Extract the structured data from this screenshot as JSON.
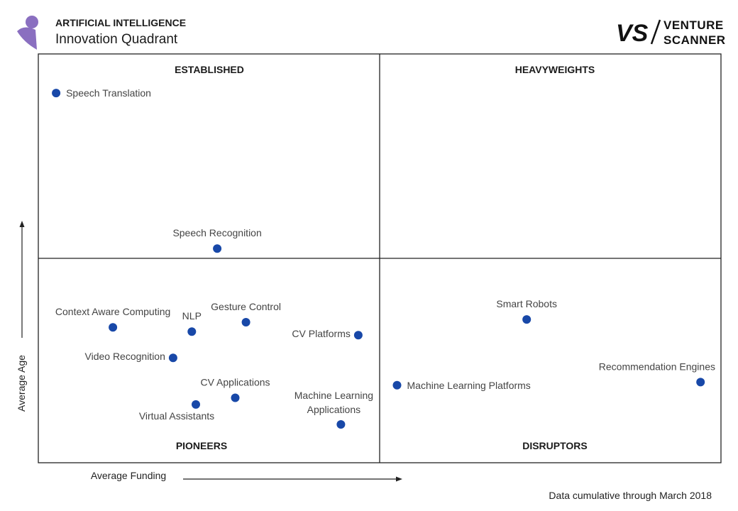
{
  "header": {
    "title": "ARTIFICIAL INTELLIGENCE",
    "subtitle": "Innovation Quadrant"
  },
  "brand": {
    "monogram": "VS",
    "line1": "VENTURE",
    "line2": "SCANNER",
    "logo_icon": "person-silhouette-icon",
    "logo_color": "#8a6fc0"
  },
  "footnote": "Data cumulative through March 2018",
  "colors": {
    "point": "#1848a8",
    "frame": "#222222"
  },
  "chart_data": {
    "type": "scatter",
    "xlabel": "Average Funding",
    "ylabel": "Average Age",
    "xlim": [
      0,
      100
    ],
    "ylim": [
      0,
      100
    ],
    "quadrants": {
      "top_left": "ESTABLISHED",
      "top_right": "HEAVYWEIGHTS",
      "bottom_left": "PIONEERS",
      "bottom_right": "DISRUPTORS"
    },
    "points": [
      {
        "label": "Speech Translation",
        "x": 1.6,
        "y": 92.2,
        "label_pos": "right"
      },
      {
        "label": "Speech Recognition",
        "x": 25.7,
        "y": 52.5,
        "label_pos": "above"
      },
      {
        "label": "Context Aware Computing",
        "x": 10.1,
        "y": 32.4,
        "label_pos": "above"
      },
      {
        "label": "NLP",
        "x": 21.9,
        "y": 31.3,
        "label_pos": "above"
      },
      {
        "label": "Gesture Control",
        "x": 30.0,
        "y": 33.7,
        "label_pos": "above"
      },
      {
        "label": "CV Platforms",
        "x": 46.8,
        "y": 30.4,
        "label_pos": "left"
      },
      {
        "label": "Video Recognition",
        "x": 19.1,
        "y": 24.6,
        "label_pos": "left"
      },
      {
        "label": "CV Applications",
        "x": 28.4,
        "y": 14.4,
        "label_pos": "above"
      },
      {
        "label": "Virtual Assistants",
        "x": 22.5,
        "y": 12.7,
        "label_pos": "below"
      },
      {
        "label": "Machine Learning Applications",
        "x": 44.2,
        "y": 7.6,
        "label_pos": "above"
      },
      {
        "label": "Smart Robots",
        "x": 72.0,
        "y": 34.4,
        "label_pos": "above"
      },
      {
        "label": "Machine Learning Platforms",
        "x": 52.6,
        "y": 17.6,
        "label_pos": "right"
      },
      {
        "label": "Recommendation Engines",
        "x": 98.0,
        "y": 18.4,
        "label_pos": "above"
      }
    ]
  }
}
